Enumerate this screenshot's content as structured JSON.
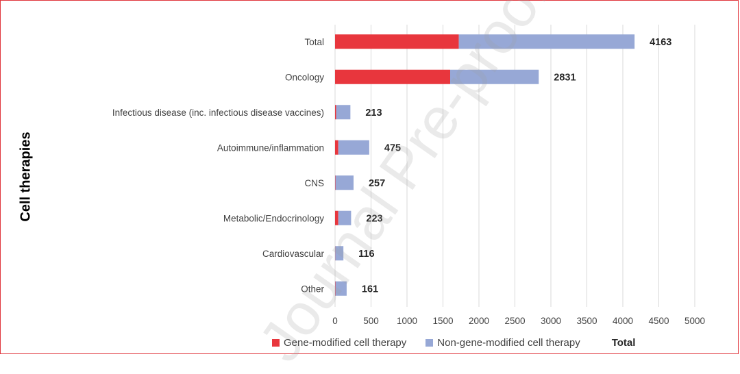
{
  "side_title": "Cell therapies",
  "watermark": "Journal Pre-proof",
  "colors": {
    "gene_modified": "#e8363d",
    "non_gene_modified": "#97a8d6",
    "grid": "#d9d9d9",
    "frame": "#e0343b"
  },
  "legend": {
    "gene_modified": "Gene-modified cell therapy",
    "non_gene_modified": "Non-gene-modified cell therapy",
    "total": "Total"
  },
  "chart_data": {
    "type": "bar",
    "orientation": "horizontal",
    "stacked": true,
    "categories": [
      "Total",
      "Oncology",
      "Infectious disease (inc. infectious disease vaccines)",
      "Autoimmune/inflammation",
      "CNS",
      "Metabolic/Endocrinology",
      "Cardiovascular",
      "Other"
    ],
    "series": [
      {
        "name": "Gene-modified cell therapy",
        "values": [
          1720,
          1600,
          15,
          45,
          5,
          45,
          3,
          5
        ]
      },
      {
        "name": "Non-gene-modified cell therapy",
        "values": [
          2443,
          1231,
          198,
          430,
          252,
          178,
          113,
          156
        ]
      }
    ],
    "totals": [
      4163,
      2831,
      213,
      475,
      257,
      223,
      116,
      161
    ],
    "total_labels": [
      "4163",
      "2831",
      "213",
      "475",
      "257",
      "223",
      "116",
      "161"
    ],
    "xlim": [
      0,
      5000
    ],
    "xticks": [
      "0",
      "500",
      "1000",
      "1500",
      "2000",
      "2500",
      "3000",
      "3500",
      "4000",
      "4500",
      "5000"
    ],
    "grid": "vertical",
    "legend_position": "bottom"
  }
}
